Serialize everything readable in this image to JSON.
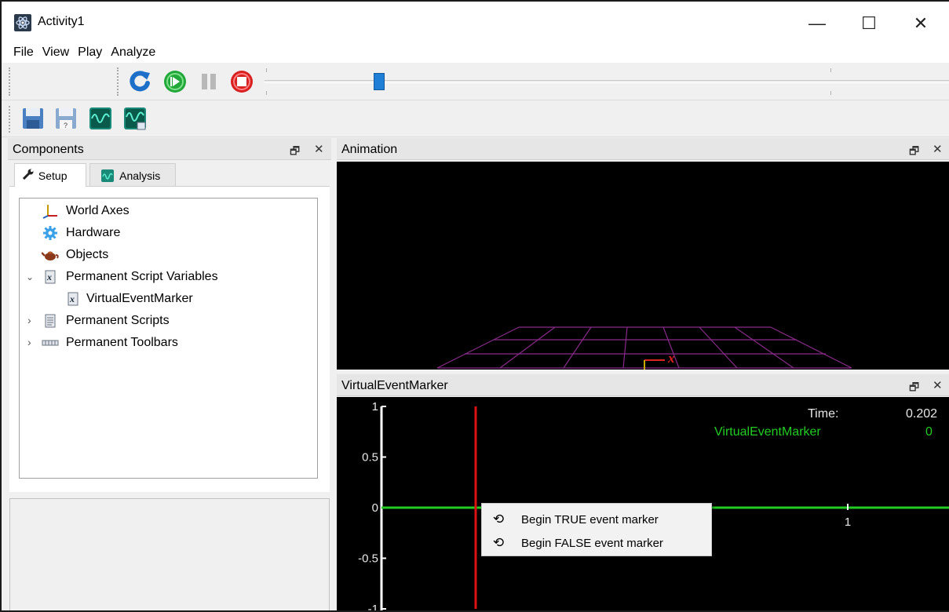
{
  "window": {
    "title": "Activity1",
    "controls": {
      "minimize": "—",
      "maximize": "☐",
      "close": "✕"
    }
  },
  "menubar": [
    "File",
    "View",
    "Play",
    "Analyze"
  ],
  "toolbar": {
    "playback_buttons": [
      "reset-icon",
      "play-icon",
      "pause-icon",
      "stop-icon"
    ],
    "file_buttons": [
      "save-icon",
      "save-as-icon",
      "signal-icon",
      "signal-export-icon"
    ],
    "timeline_position": 0.16
  },
  "components_panel": {
    "title": "Components",
    "tabs": [
      {
        "label": "Setup",
        "icon": "wrench-icon",
        "active": true
      },
      {
        "label": "Analysis",
        "icon": "signal-icon",
        "active": false
      }
    ],
    "tree": [
      {
        "label": "World Axes",
        "icon": "axes-icon",
        "expander": "",
        "indent": 0
      },
      {
        "label": "Hardware",
        "icon": "gear-icon",
        "expander": "",
        "indent": 0
      },
      {
        "label": "Objects",
        "icon": "teapot-icon",
        "expander": "",
        "indent": 0
      },
      {
        "label": "Permanent Script Variables",
        "icon": "script-variable-icon",
        "expander": "expanded",
        "indent": 0
      },
      {
        "label": "VirtualEventMarker",
        "icon": "script-variable-icon",
        "expander": "",
        "indent": 1
      },
      {
        "label": "Permanent Scripts",
        "icon": "script-icon",
        "expander": "collapsed",
        "indent": 0
      },
      {
        "label": "Permanent Toolbars",
        "icon": "toolbar-icon",
        "expander": "collapsed",
        "indent": 0
      }
    ]
  },
  "animation_panel": {
    "title": "Animation",
    "axis_label": "x"
  },
  "plot_panel": {
    "title": "VirtualEventMarker",
    "readout": {
      "time_label": "Time:",
      "time_value": "0.202",
      "series_label": "VirtualEventMarker",
      "series_value": "0"
    }
  },
  "chart_data": {
    "type": "line",
    "title": "VirtualEventMarker",
    "ylim": [
      -1,
      1
    ],
    "y_ticks": [
      "1",
      "0.5",
      "0",
      "-0.5",
      "-1"
    ],
    "x_ticks": [
      "1"
    ],
    "series": [
      {
        "name": "VirtualEventMarker",
        "color": "#22cc22",
        "x": [
          0,
          1.22
        ],
        "y": [
          0,
          0
        ]
      }
    ],
    "cursor_x": 0.202,
    "cursor_color": "#dd1111"
  },
  "context_menu": {
    "items": [
      {
        "label": "Begin TRUE event marker",
        "icon": "refresh-icon"
      },
      {
        "label": "Begin FALSE event marker",
        "icon": "refresh-icon"
      }
    ]
  },
  "colors": {
    "plot_line": "#22cc22",
    "cursor": "#dd1111",
    "grid": "#8a2a8a",
    "timeline_thumb": "#1f7fd6"
  }
}
